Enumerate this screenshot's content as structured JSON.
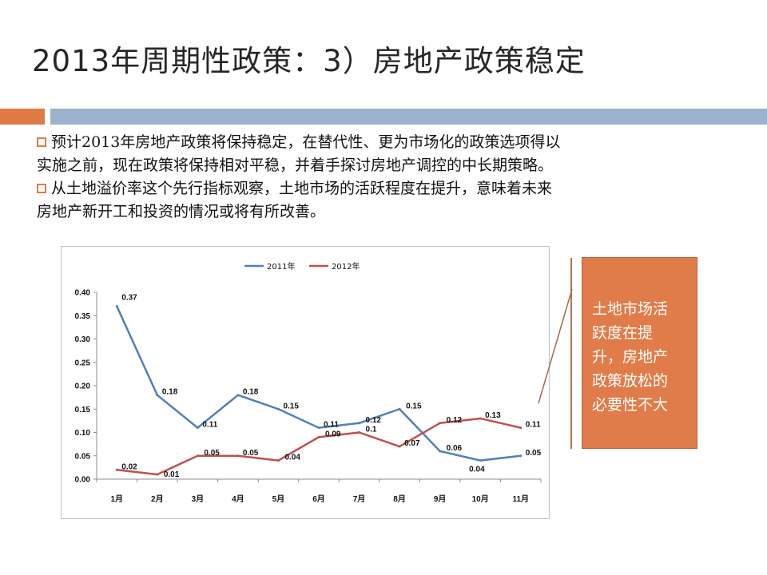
{
  "title": "2013年周期性政策：3）房地产政策稳定",
  "bullets": [
    {
      "lines": [
        "预计2013年房地产政策将保持稳定，在替代性、更为市场化的政策选项得以",
        "实施之前，现在政策将保持相对平稳，并着手探讨房地产调控的中长期策略。"
      ]
    },
    {
      "lines": [
        "从土地溢价率这个先行指标观察，土地市场的活跃程度在提升，意味着未来",
        "房地产新开工和投资的情况或将有所改善。"
      ]
    }
  ],
  "callout": {
    "lines": [
      "土地市场活",
      "跃度在提",
      "升，房地产",
      "政策放松的",
      "必要性不大"
    ]
  },
  "colors": {
    "accent_orange": "#e07a45",
    "accent_blue": "#9ab3cf",
    "series_2011": "#4f81bd",
    "series_2012": "#c0504d"
  },
  "chart_data": {
    "type": "line",
    "categories": [
      "1月",
      "2月",
      "3月",
      "4月",
      "5月",
      "6月",
      "7月",
      "8月",
      "9月",
      "10月",
      "11月"
    ],
    "series": [
      {
        "name": "2011年",
        "values": [
          0.37,
          0.18,
          0.11,
          0.18,
          0.15,
          0.11,
          0.12,
          0.15,
          0.06,
          0.04,
          0.05
        ],
        "labels": [
          "0.37",
          "0.18",
          "0.11",
          "0.18",
          "0.15",
          "0.11",
          "0.12",
          "0.15",
          "0.06",
          "0.04",
          "0.05"
        ]
      },
      {
        "name": "2012年",
        "values": [
          0.02,
          0.01,
          0.05,
          0.05,
          0.04,
          0.09,
          0.1,
          0.07,
          0.12,
          0.13,
          0.11
        ],
        "labels": [
          "0.02",
          "0.01",
          "0.05",
          "0.05",
          "0.04",
          "0.09",
          "0.1",
          "0.07",
          "0.12",
          "0.13",
          "0.11"
        ]
      }
    ],
    "ylim": [
      0,
      0.4
    ],
    "yticks": [
      "0.00",
      "0.05",
      "0.10",
      "0.15",
      "0.20",
      "0.25",
      "0.30",
      "0.35",
      "0.40"
    ],
    "legend": "top-center",
    "grid": false
  }
}
